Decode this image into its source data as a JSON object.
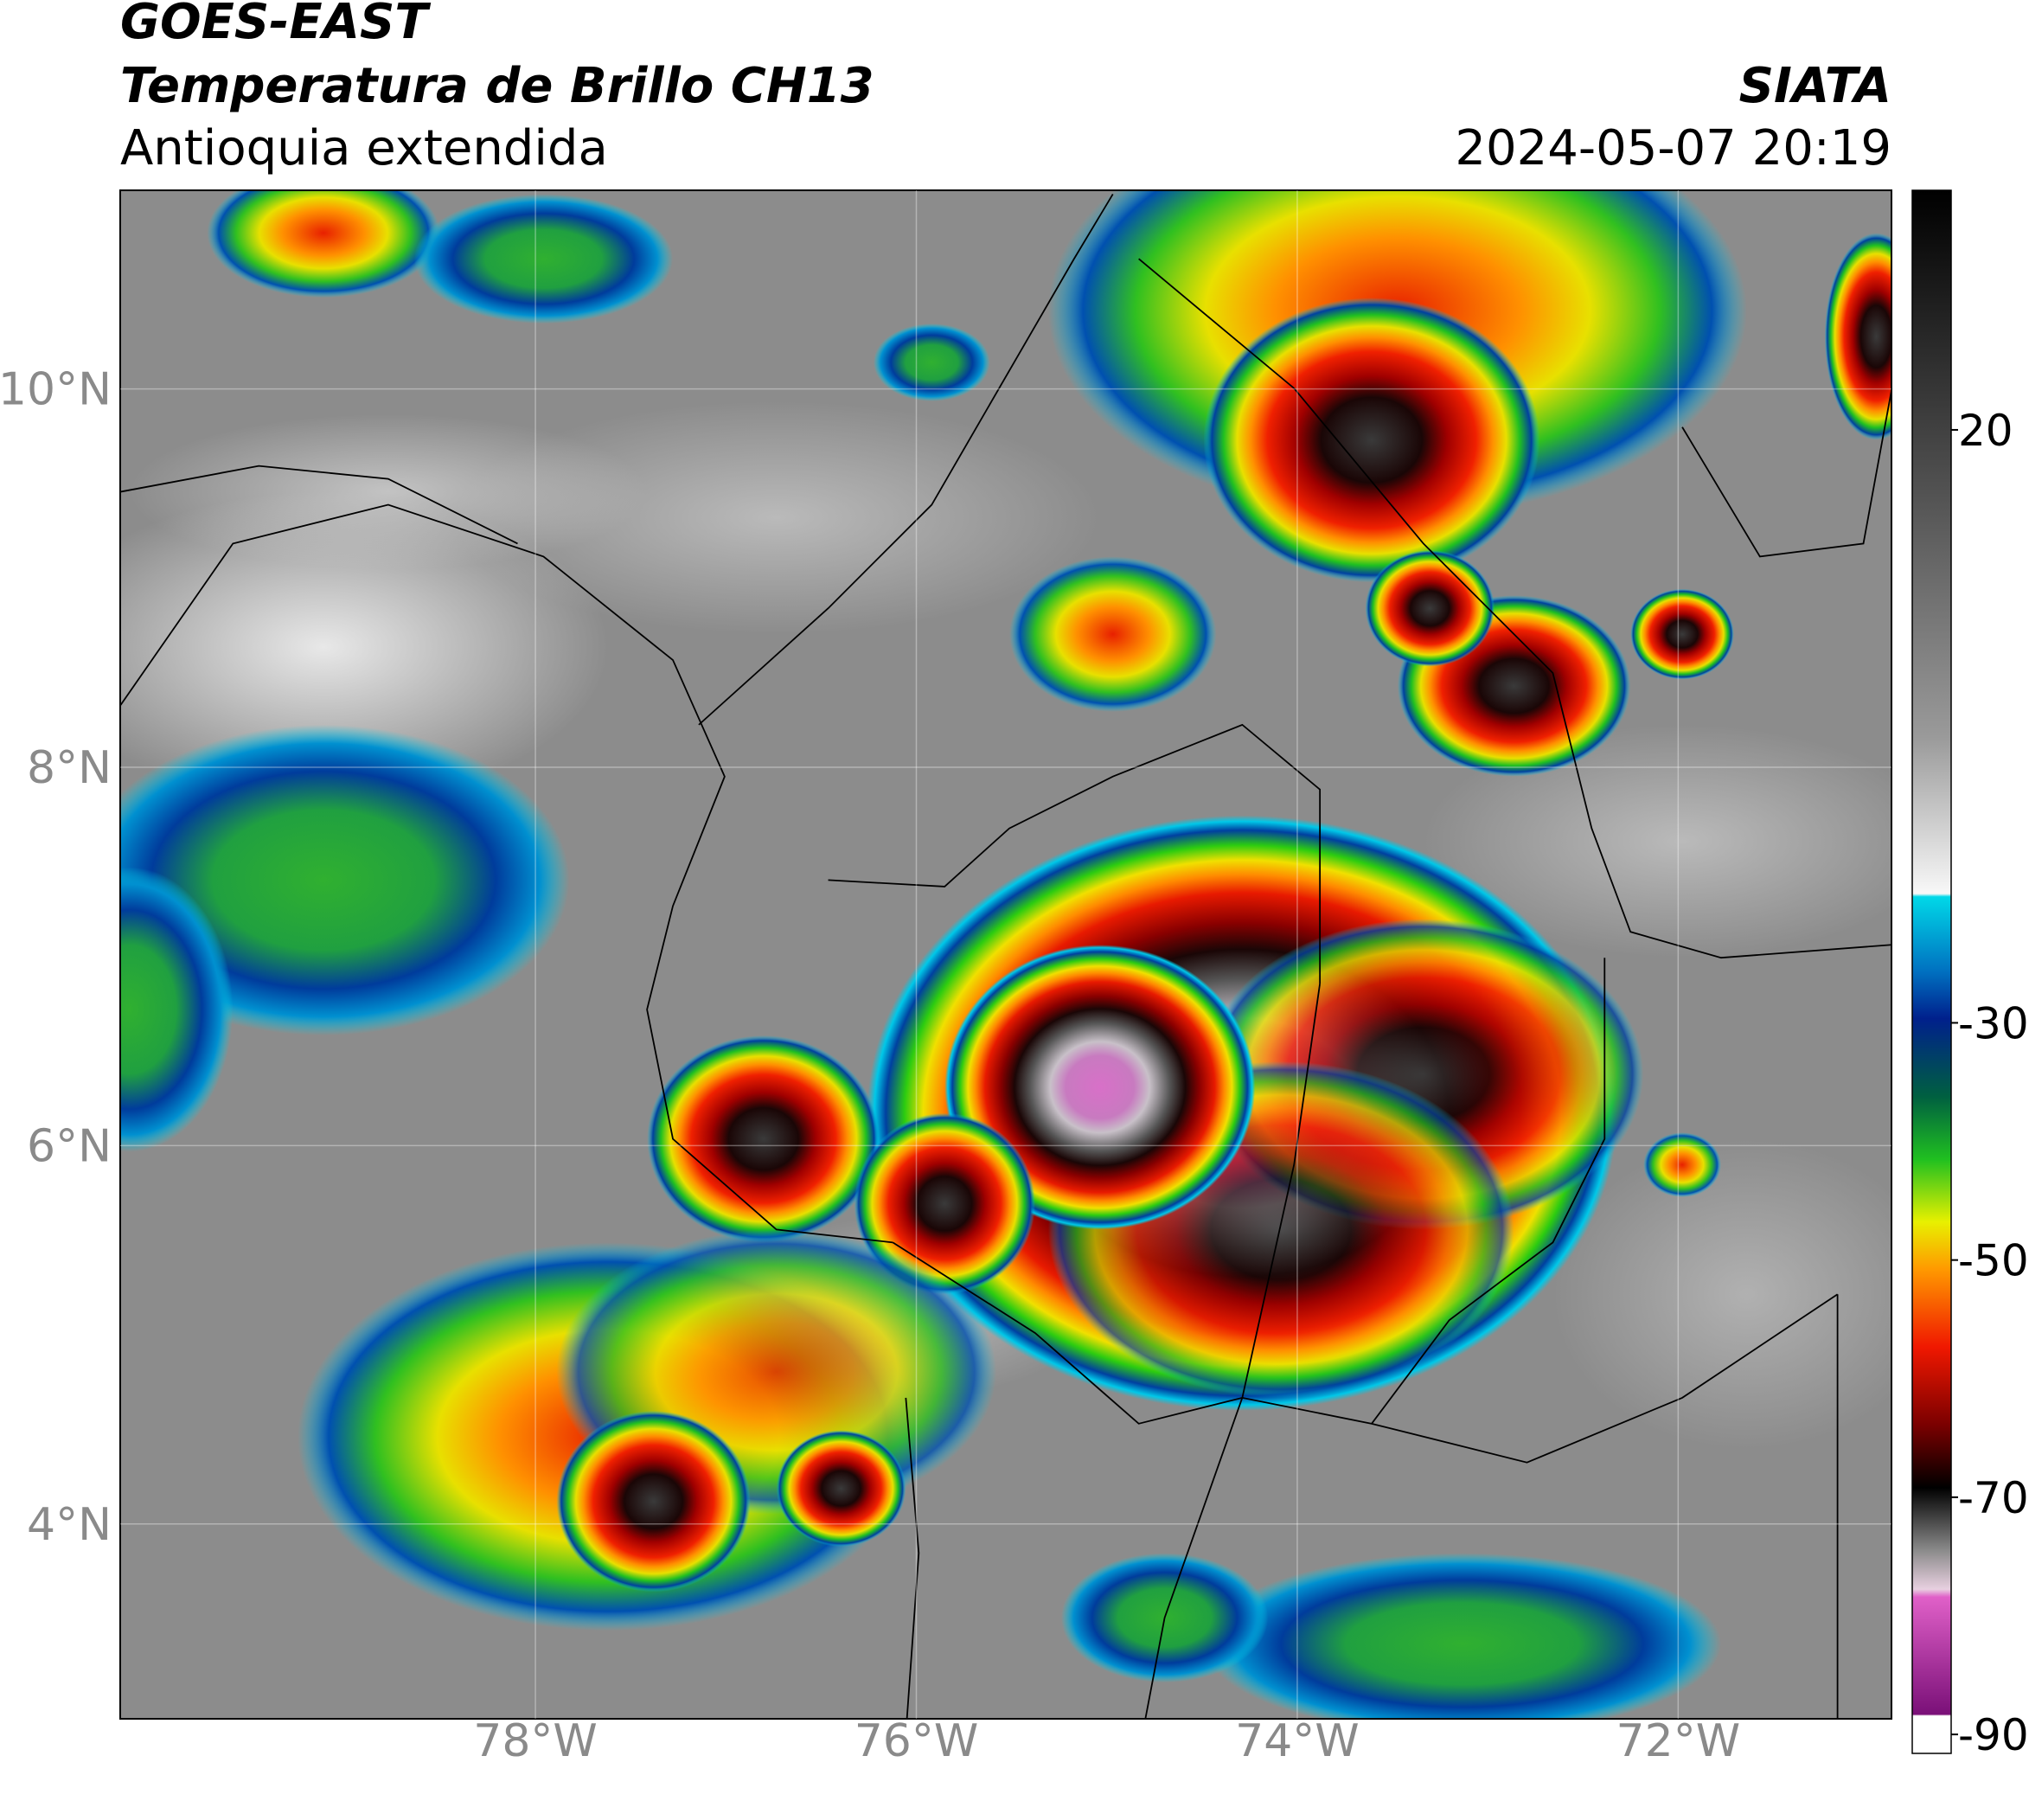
{
  "header": {
    "title": "GOES-EAST",
    "subtitle": "Temperatura de Brillo CH13",
    "region": "Antioquia extendida",
    "source": "SIATA",
    "datetime": "2024-05-07 20:19"
  },
  "map": {
    "xlim": [
      -80.18,
      -70.88
    ],
    "ylim": [
      2.97,
      11.05
    ],
    "xticks": [
      {
        "value": -78,
        "label": "78°W"
      },
      {
        "value": -76,
        "label": "76°W"
      },
      {
        "value": -74,
        "label": "74°W"
      },
      {
        "value": -72,
        "label": "72°W"
      }
    ],
    "yticks": [
      {
        "value": 10,
        "label": "10°N"
      },
      {
        "value": 8,
        "label": "8°N"
      },
      {
        "value": 6,
        "label": "6°N"
      },
      {
        "value": 4,
        "label": "4°N"
      }
    ],
    "grid": true
  },
  "colorbar": {
    "lim": [
      -91.6,
      40.2
    ],
    "ticks": [
      20,
      -30,
      -50,
      -70,
      -90
    ]
  }
}
